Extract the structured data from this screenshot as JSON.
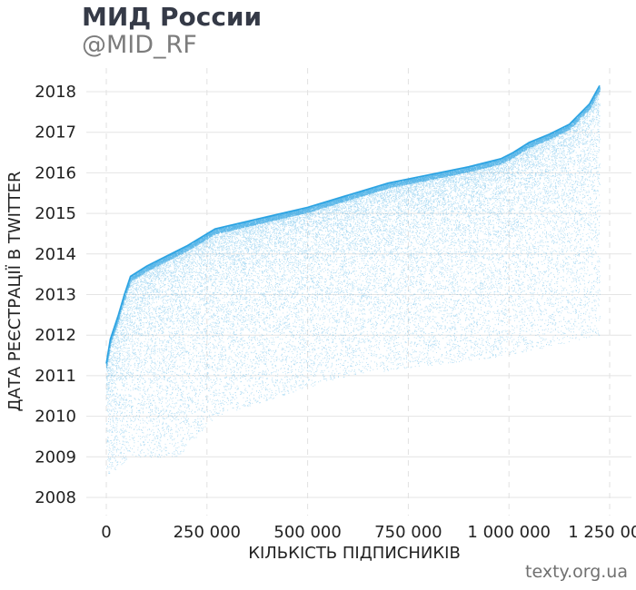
{
  "header": {
    "title": "МИД России",
    "subtitle": "@MID_RF"
  },
  "footer": {
    "credit": "texty.org.ua"
  },
  "chart_data": {
    "type": "scatter",
    "title": "МИД России",
    "subtitle": "@MID_RF",
    "xlabel": "КІЛЬКІСТЬ ПІДПИСНИКІВ",
    "ylabel": "ДАТА РЕЄСТРАЦІЇ В TWITTER",
    "xlim": [
      -30000,
      1290000
    ],
    "ylim": [
      2007.6,
      2018.4
    ],
    "x_ticks": [
      0,
      250000,
      500000,
      750000,
      1000000,
      1250000
    ],
    "x_tick_labels": [
      "0",
      "250 000",
      "500 000",
      "750 000",
      "1 000 000",
      "1 250 000"
    ],
    "y_ticks": [
      2008,
      2009,
      2010,
      2011,
      2012,
      2013,
      2014,
      2015,
      2016,
      2017,
      2018
    ],
    "y_tick_labels": [
      "2008",
      "2009",
      "2010",
      "2011",
      "2012",
      "2013",
      "2014",
      "2015",
      "2016",
      "2017",
      "2018"
    ],
    "grid": true,
    "point_color": "#1a9be0",
    "upper_envelope": {
      "x": [
        0,
        10000,
        30000,
        45000,
        60000,
        100000,
        150000,
        200000,
        270000,
        400000,
        500000,
        600000,
        700000,
        800000,
        900000,
        980000,
        1010000,
        1050000,
        1100000,
        1150000,
        1200000,
        1225000
      ],
      "y": [
        2011.3,
        2011.9,
        2012.5,
        2013.0,
        2013.45,
        2013.7,
        2013.95,
        2014.2,
        2014.62,
        2014.92,
        2015.15,
        2015.45,
        2015.75,
        2015.95,
        2016.15,
        2016.35,
        2016.5,
        2016.75,
        2016.95,
        2017.2,
        2017.7,
        2018.15
      ]
    },
    "lower_bound_by_x": {
      "x": [
        0,
        60000,
        180000,
        270000,
        600000,
        1000000,
        1225000
      ],
      "y": [
        2008.5,
        2009.0,
        2009.0,
        2010.0,
        2011.0,
        2011.5,
        2012.0
      ]
    },
    "point_count": 30000
  }
}
